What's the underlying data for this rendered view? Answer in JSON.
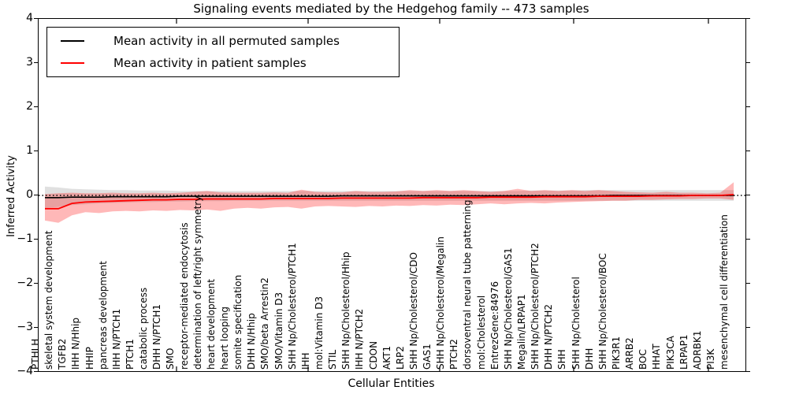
{
  "figure": {
    "title": "Signaling events mediated by the Hedgehog family -- 473 samples",
    "xlabel": "Cellular Entities",
    "ylabel": "Inferred Activity",
    "legend": [
      {
        "label": "Mean activity in all permuted samples",
        "color": "#000000"
      },
      {
        "label": "Mean activity in patient samples",
        "color": "#ff0000"
      }
    ],
    "ytick_labels": [
      "4",
      "3",
      "2",
      "1",
      "0",
      "−1",
      "−2",
      "−3",
      "−4"
    ]
  },
  "chart_data": {
    "type": "line",
    "title": "Signaling events mediated by the Hedgehog family -- 473 samples",
    "xlabel": "Cellular Entities",
    "ylabel": "Inferred Activity",
    "ylim": [
      -4,
      4
    ],
    "yticks": [
      4,
      3,
      2,
      1,
      0,
      -1,
      -2,
      -3,
      -4
    ],
    "grid": false,
    "legend_position": "upper left",
    "zero_reference_line": 0,
    "band_colors": {
      "permuted": "rgba(0,0,0,0.12)",
      "patient": "rgba(255,0,0,0.28)"
    },
    "line_colors": {
      "permuted": "#000000",
      "patient": "#ff0000"
    },
    "categories": [
      "PTHLH",
      "skeletal system development",
      "TGFB2",
      "IHH N/Hhip",
      "HHIP",
      "pancreas development",
      "IHH N/PTCH1",
      "PTCH1",
      "catabolic process",
      "DHH N/PTCH1",
      "SMO",
      "receptor-mediated endocytosis",
      "determination of left/right symmetry",
      "heart development",
      "heart looping",
      "somite specification",
      "DHH N/Hhip",
      "SMO/beta Arrestin2",
      "SMO/Vitamin D3",
      "SHH Np/Cholesterol/PTCH1",
      "IHH",
      "mol:Vitamin D3",
      "STIL",
      "SHH Np/Cholesterol/Hhip",
      "IHH N/PTCH2",
      "CDON",
      "AKT1",
      "LRP2",
      "SHH Np/Cholesterol/CDO",
      "GAS1",
      "SHH Np/Cholesterol/Megalin",
      "PTCH2",
      "dorsoventral neural tube patterning",
      "mol:Cholesterol",
      "EntrezGene:84976",
      "SHH Np/Cholesterol/GAS1",
      "Megalin/LRPAP1",
      "SHH Np/Cholesterol/PTCH2",
      "DHH N/PTCH2",
      "SHH",
      "SHH Np/Cholesterol",
      "DHH",
      "SHH Np/Cholesterol/BOC",
      "PIK3R1",
      "ARRB2",
      "BOC",
      "HHAT",
      "PIK3CA",
      "LRPAP1",
      "ADRBK1",
      "PI3K",
      "mesenchymal cell differentiation"
    ],
    "series": [
      {
        "name": "permuted_mean",
        "values": [
          -0.05,
          -0.05,
          -0.04,
          -0.04,
          -0.04,
          -0.03,
          -0.03,
          -0.03,
          -0.03,
          -0.03,
          -0.02,
          -0.02,
          -0.02,
          -0.02,
          -0.02,
          -0.02,
          -0.02,
          -0.02,
          -0.02,
          -0.02,
          -0.02,
          -0.02,
          -0.01,
          -0.01,
          -0.01,
          -0.01,
          -0.01,
          -0.01,
          -0.01,
          -0.01,
          -0.01,
          -0.01,
          -0.01,
          -0.01,
          -0.01,
          -0.01,
          -0.01,
          -0.01,
          -0.01,
          -0.01,
          -0.01,
          -0.01,
          0.0,
          0.0,
          0.0,
          0.0,
          0.0,
          0.0,
          0.0,
          0.0,
          0.0,
          0.0
        ]
      },
      {
        "name": "permuted_band_upper",
        "values": [
          0.2,
          0.18,
          0.15,
          0.14,
          0.13,
          0.12,
          0.12,
          0.11,
          0.11,
          0.11,
          0.1,
          0.1,
          0.1,
          0.1,
          0.1,
          0.1,
          0.1,
          0.1,
          0.1,
          0.1,
          0.1,
          0.1,
          0.1,
          0.1,
          0.1,
          0.1,
          0.1,
          0.1,
          0.1,
          0.1,
          0.1,
          0.1,
          0.1,
          0.1,
          0.1,
          0.1,
          0.11,
          0.11,
          0.11,
          0.11,
          0.12,
          0.12,
          0.12,
          0.12,
          0.12,
          0.12,
          0.12,
          0.12,
          0.12,
          0.12,
          0.12,
          0.12
        ]
      },
      {
        "name": "permuted_band_lower",
        "values": [
          -0.28,
          -0.26,
          -0.22,
          -0.2,
          -0.18,
          -0.17,
          -0.16,
          -0.15,
          -0.15,
          -0.14,
          -0.14,
          -0.13,
          -0.13,
          -0.13,
          -0.12,
          -0.12,
          -0.12,
          -0.12,
          -0.12,
          -0.12,
          -0.12,
          -0.12,
          -0.12,
          -0.12,
          -0.12,
          -0.12,
          -0.12,
          -0.12,
          -0.12,
          -0.12,
          -0.12,
          -0.12,
          -0.12,
          -0.12,
          -0.12,
          -0.12,
          -0.12,
          -0.12,
          -0.12,
          -0.12,
          -0.12,
          -0.12,
          -0.12,
          -0.12,
          -0.12,
          -0.12,
          -0.12,
          -0.12,
          -0.12,
          -0.12,
          -0.12,
          -0.12
        ]
      },
      {
        "name": "patient_mean",
        "values": [
          -0.3,
          -0.3,
          -0.18,
          -0.15,
          -0.14,
          -0.13,
          -0.12,
          -0.11,
          -0.1,
          -0.1,
          -0.09,
          -0.09,
          -0.08,
          -0.08,
          -0.08,
          -0.08,
          -0.08,
          -0.07,
          -0.07,
          -0.07,
          -0.07,
          -0.07,
          -0.06,
          -0.06,
          -0.06,
          -0.06,
          -0.06,
          -0.06,
          -0.05,
          -0.05,
          -0.05,
          -0.05,
          -0.05,
          -0.04,
          -0.04,
          -0.04,
          -0.04,
          -0.03,
          -0.03,
          -0.03,
          -0.03,
          -0.02,
          -0.02,
          -0.02,
          -0.02,
          -0.01,
          -0.01,
          -0.01,
          0.0,
          0.0,
          0.0,
          0.02
        ]
      },
      {
        "name": "patient_band_upper",
        "values": [
          0.03,
          0.05,
          0.06,
          0.05,
          0.05,
          0.06,
          0.05,
          0.05,
          0.06,
          0.05,
          0.06,
          0.08,
          0.1,
          0.07,
          0.06,
          0.06,
          0.06,
          0.07,
          0.06,
          0.13,
          0.08,
          0.07,
          0.07,
          0.1,
          0.08,
          0.08,
          0.09,
          0.12,
          0.1,
          0.12,
          0.1,
          0.12,
          0.1,
          0.08,
          0.1,
          0.15,
          0.1,
          0.12,
          0.1,
          0.12,
          0.1,
          0.12,
          0.1,
          0.08,
          0.07,
          0.06,
          0.08,
          0.06,
          0.06,
          0.05,
          0.06,
          0.3
        ]
      },
      {
        "name": "patient_band_lower",
        "values": [
          -0.57,
          -0.62,
          -0.45,
          -0.38,
          -0.4,
          -0.36,
          -0.35,
          -0.36,
          -0.34,
          -0.35,
          -0.33,
          -0.34,
          -0.32,
          -0.35,
          -0.3,
          -0.28,
          -0.3,
          -0.27,
          -0.26,
          -0.3,
          -0.25,
          -0.24,
          -0.25,
          -0.26,
          -0.24,
          -0.25,
          -0.23,
          -0.24,
          -0.22,
          -0.23,
          -0.21,
          -0.22,
          -0.2,
          -0.18,
          -0.2,
          -0.18,
          -0.17,
          -0.18,
          -0.16,
          -0.15,
          -0.14,
          -0.13,
          -0.12,
          -0.12,
          -0.1,
          -0.1,
          -0.09,
          -0.08,
          -0.08,
          -0.07,
          -0.07,
          -0.1
        ]
      }
    ]
  }
}
